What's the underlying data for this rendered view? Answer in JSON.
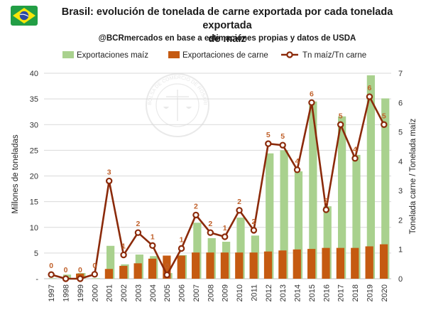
{
  "header": {
    "title_line1": "Brasil: evolución de tonelada de carne exportada por cada tonelada exportada",
    "title_line2": "de maíz",
    "subtitle": "@BCRmercados en base a estimaciones propias y datos de USDA",
    "flag_icon": "brazil-flag-icon",
    "watermark_text": "BOLSA DE COMERCIO DE ROSARIO"
  },
  "colors": {
    "maiz": "#a9d18e",
    "carne": "#c55a11",
    "ratio_line": "#8b2a0a",
    "marker_fill": "#ffffff",
    "label": "#c0602a"
  },
  "chart_data": {
    "type": "bar",
    "categories": [
      "1997",
      "1998",
      "1999",
      "2000",
      "2001",
      "2002",
      "2003",
      "2004",
      "2005",
      "2006",
      "2007",
      "2008",
      "2009",
      "2010",
      "2011",
      "2012",
      "2013",
      "2014",
      "2015",
      "2016",
      "2017",
      "2018",
      "2019",
      "2020"
    ],
    "series": [
      {
        "name": "Exportaciones maíz",
        "axis": "left",
        "kind": "bar",
        "values": [
          0.1,
          0.8,
          1.1,
          0.1,
          6.4,
          2.8,
          4.7,
          4.4,
          1.1,
          4.6,
          10.9,
          7.9,
          7.2,
          11.9,
          8.4,
          24.4,
          25.0,
          20.9,
          34.5,
          14.1,
          31.6,
          24.1,
          39.6,
          35.1
        ]
      },
      {
        "name": "Exportaciones de carne",
        "axis": "left",
        "kind": "bar",
        "values": [
          0.0,
          0.0,
          1.0,
          0.0,
          1.9,
          2.5,
          3.0,
          3.9,
          4.5,
          4.5,
          5.1,
          5.1,
          5.1,
          5.1,
          5.1,
          5.3,
          5.5,
          5.7,
          5.8,
          6.0,
          6.0,
          6.0,
          6.3,
          6.7
        ]
      },
      {
        "name": "Tn maíz/Tn carne",
        "axis": "right",
        "kind": "line",
        "values": [
          0.14,
          0.0,
          0.0,
          0.15,
          3.33,
          0.81,
          1.57,
          1.13,
          0.13,
          1.03,
          2.17,
          1.57,
          1.43,
          2.33,
          1.65,
          4.6,
          4.55,
          3.71,
          6.0,
          2.35,
          5.25,
          4.1,
          6.2,
          5.25
        ],
        "labels": [
          "0",
          "0",
          "0",
          "0",
          "3",
          "1",
          "2",
          "1",
          "0",
          "1",
          "2",
          "2",
          "1",
          "2",
          "2",
          "5",
          "5",
          "4",
          "6",
          "2",
          "5",
          "4",
          "6",
          "5"
        ]
      }
    ],
    "ylabel": "Millones de toneladas",
    "ylabel_right": "Tonelada carne / Tonelada maíz",
    "ylim": [
      0,
      40
    ],
    "ylim_right": [
      0,
      7
    ],
    "yticks": [
      "-",
      "5",
      "10",
      "15",
      "20",
      "25",
      "30",
      "35",
      "40"
    ],
    "yticks_right": [
      "0",
      "1",
      "2",
      "3",
      "4",
      "5",
      "6",
      "7"
    ],
    "grid": true,
    "legend_position": "top"
  }
}
